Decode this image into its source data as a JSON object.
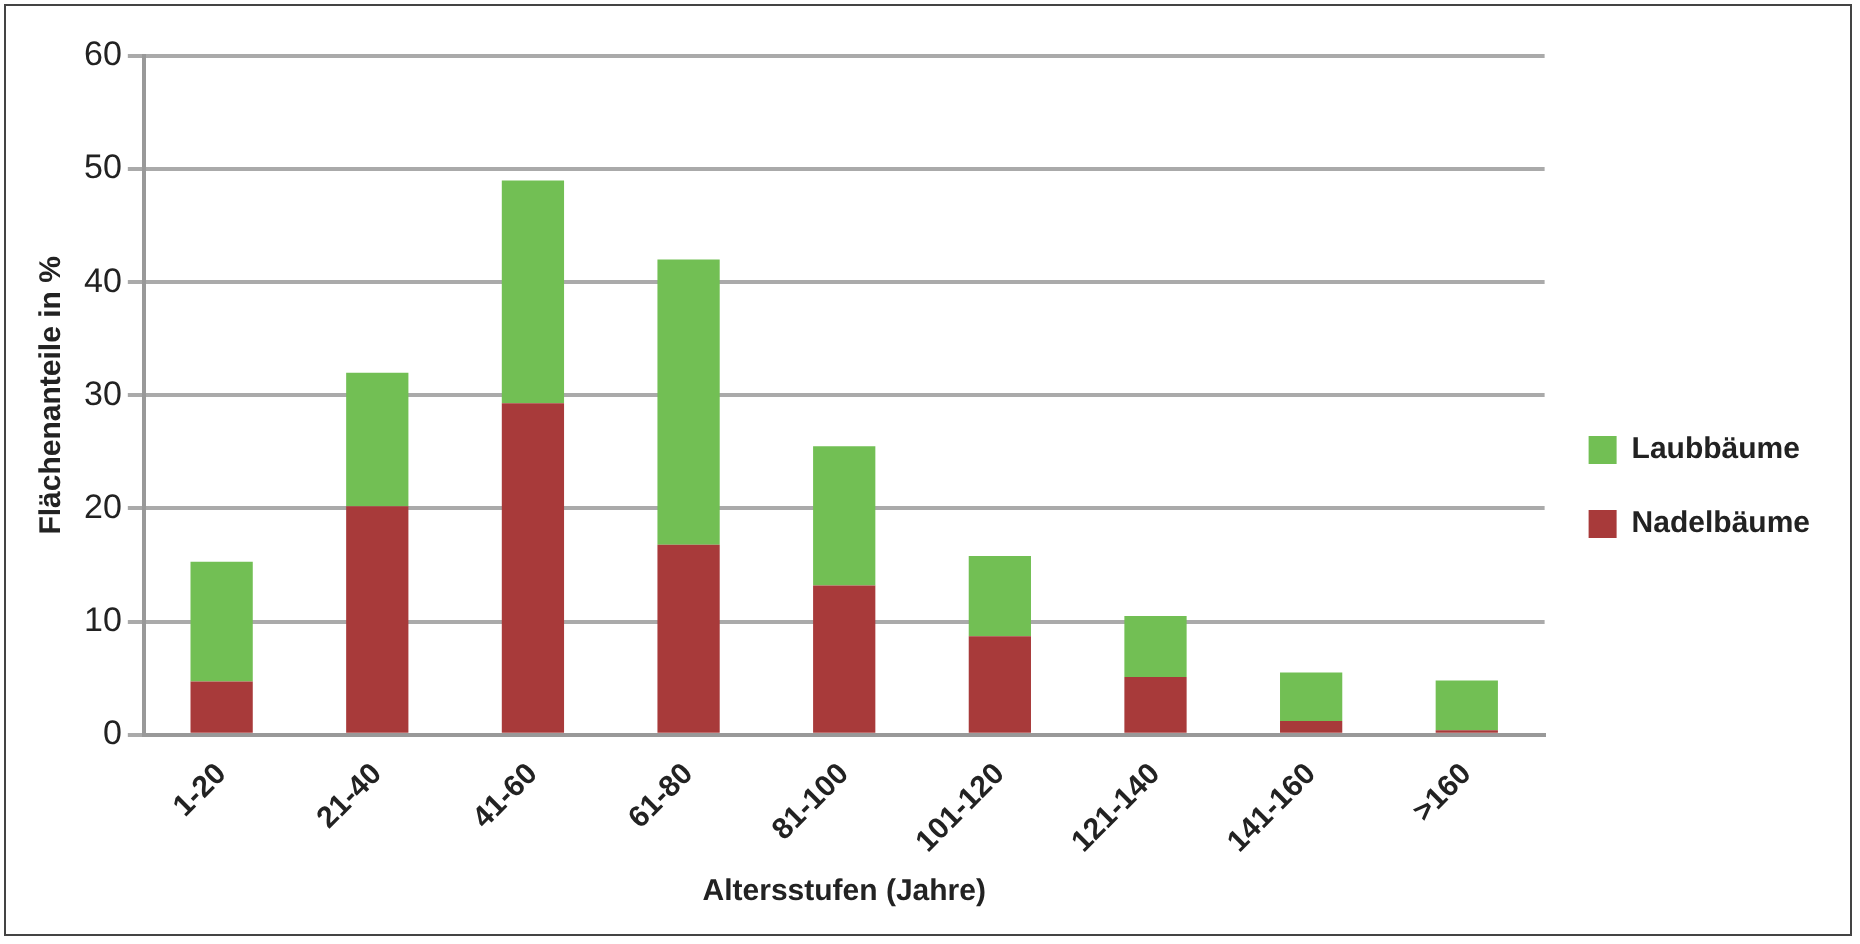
{
  "chart_data": {
    "type": "bar",
    "stacked": true,
    "xlabel": "Altersstufen (Jahre)",
    "ylabel": "Flächenanteile in %",
    "categories": [
      "1-20",
      "21-40",
      "41-60",
      "61-80",
      "81-100",
      "101-120",
      "121-140",
      "141-160",
      ">160"
    ],
    "series": [
      {
        "name": "Nadelbäume",
        "color": "#a83a3a",
        "values": [
          4.7,
          20.2,
          29.3,
          16.8,
          13.2,
          8.7,
          5.1,
          1.2,
          0.4
        ]
      },
      {
        "name": "Laubbäume",
        "color": "#72bf54",
        "values": [
          10.6,
          11.8,
          19.7,
          25.2,
          12.3,
          7.1,
          5.4,
          4.3,
          4.4
        ]
      }
    ],
    "ylim": [
      0,
      60
    ],
    "yticks": [
      0,
      10,
      20,
      30,
      40,
      50,
      60
    ],
    "grid": "y",
    "legend": "right"
  }
}
